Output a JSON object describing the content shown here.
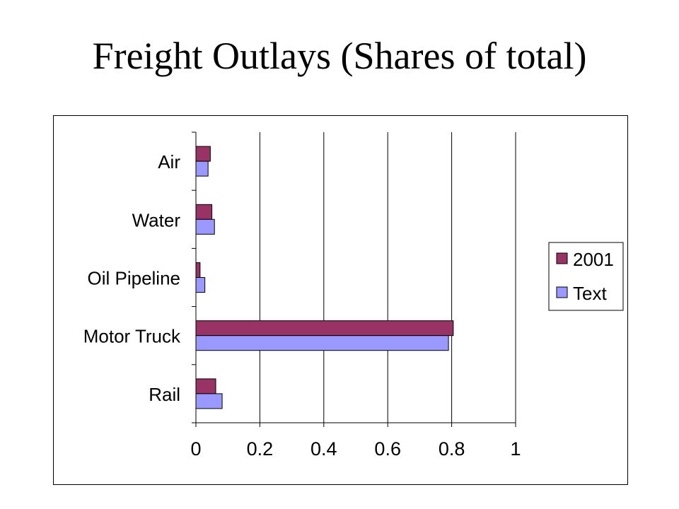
{
  "title": "Freight Outlays (Shares of total)",
  "chart_data": {
    "type": "bar",
    "orientation": "horizontal",
    "categories": [
      "Air",
      "Water",
      "Oil Pipeline",
      "Motor Truck",
      "Rail"
    ],
    "series": [
      {
        "name": "2001",
        "color": "#993366",
        "values": [
          0.045,
          0.05,
          0.013,
          0.805,
          0.062
        ]
      },
      {
        "name": "Text",
        "color": "#9999ff",
        "values": [
          0.038,
          0.058,
          0.028,
          0.79,
          0.082
        ]
      }
    ],
    "xlim": [
      0,
      1
    ],
    "xticks": [
      "0",
      "0.2",
      "0.4",
      "0.6",
      "0.8",
      "1"
    ],
    "grid": "vertical",
    "legend": "right"
  }
}
